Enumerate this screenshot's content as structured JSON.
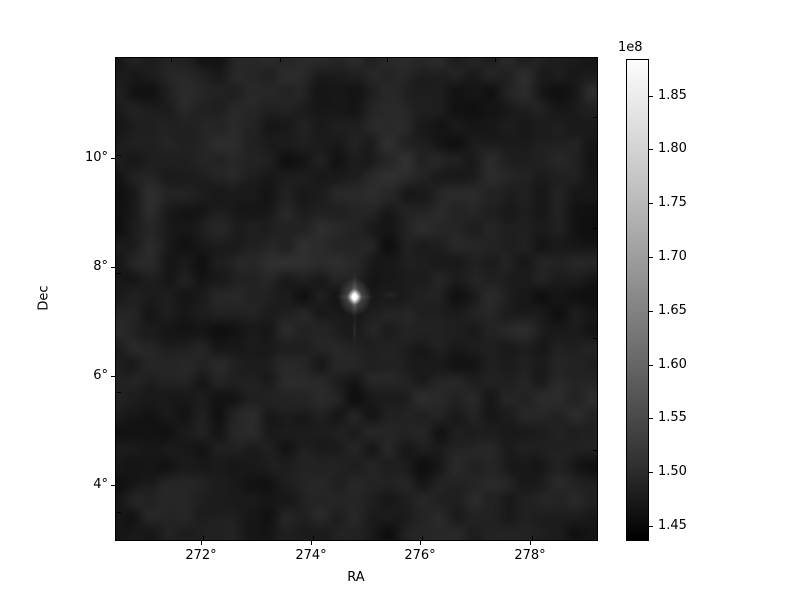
{
  "chart_data": {
    "type": "heatmap",
    "title": "",
    "xlabel": "RA",
    "ylabel": "Dec",
    "xlim": [
      270.45,
      279.22
    ],
    "ylim": [
      2.99,
      11.83
    ],
    "x_ticks": [
      {
        "value": 272,
        "label": "272°"
      },
      {
        "value": 274,
        "label": "274°"
      },
      {
        "value": 276,
        "label": "276°"
      },
      {
        "value": 278,
        "label": "278°"
      }
    ],
    "y_ticks": [
      {
        "value": 10,
        "label": "10°"
      },
      {
        "value": 8,
        "label": "8°"
      },
      {
        "value": 6,
        "label": "6°"
      },
      {
        "value": 4,
        "label": "4°"
      }
    ],
    "grid": false,
    "colormap": "gray",
    "legend": "none",
    "colorbar": {
      "position": "right",
      "offset_text": "1e8",
      "vmin_1e8": 1.437,
      "vmax_1e8": 1.883,
      "ticks": [
        {
          "value": 1.85,
          "label": "1.85"
        },
        {
          "value": 1.8,
          "label": "1.80"
        },
        {
          "value": 1.75,
          "label": "1.75"
        },
        {
          "value": 1.7,
          "label": "1.70"
        },
        {
          "value": 1.65,
          "label": "1.65"
        },
        {
          "value": 1.6,
          "label": "1.60"
        },
        {
          "value": 1.55,
          "label": "1.55"
        },
        {
          "value": 1.5,
          "label": "1.50"
        },
        {
          "value": 1.45,
          "label": "1.45"
        }
      ]
    },
    "background_field": {
      "mean_1e8": 1.49,
      "noise_amplitude_1e8": 0.035,
      "texture": "smooth blotchy random noise, dark gray, blob scale ~17-35 px"
    },
    "sources": [
      {
        "ra_deg": 274.8,
        "dec_deg": 7.45,
        "peak_1e8": 1.88,
        "shape": "bright point source, white core ~7px with ~20px glow, faint vertical and horizontal PSF spikes"
      }
    ],
    "projection_note": "WCS-like axes: tick marks on top/right edges offset from bottom/left tick positions"
  }
}
